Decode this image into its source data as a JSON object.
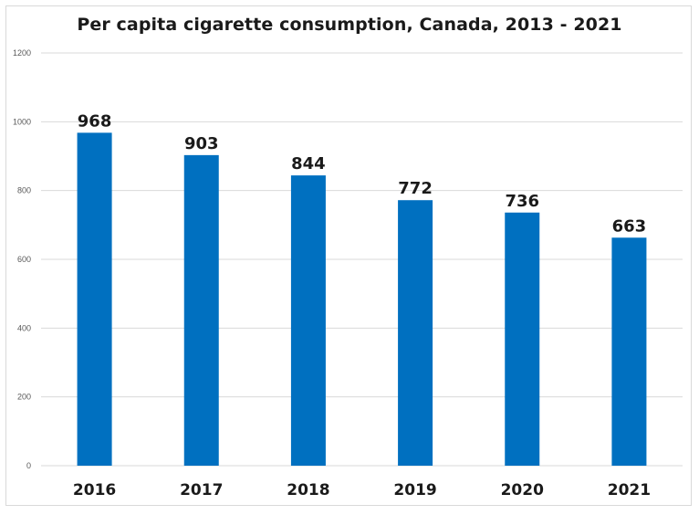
{
  "chart_data": {
    "type": "bar",
    "title": "Per capita cigarette consumption, Canada, 2013 - 2021",
    "xlabel": "",
    "ylabel": "",
    "categories": [
      "2016",
      "2017",
      "2018",
      "2019",
      "2020",
      "2021"
    ],
    "values": [
      968,
      903,
      844,
      772,
      736,
      663
    ],
    "data_labels": [
      "968",
      "903",
      "844",
      "772",
      "736",
      "663"
    ],
    "ylim": [
      0,
      1200
    ],
    "yticks": [
      0,
      200,
      400,
      600,
      800,
      1000,
      1200
    ],
    "ytick_labels": [
      "0",
      "200",
      "400",
      "600",
      "800",
      "1000",
      "1200"
    ],
    "grid": true,
    "legend": "none",
    "bar_color": "#0070C0",
    "gridline_color": "#d9d9d9"
  }
}
